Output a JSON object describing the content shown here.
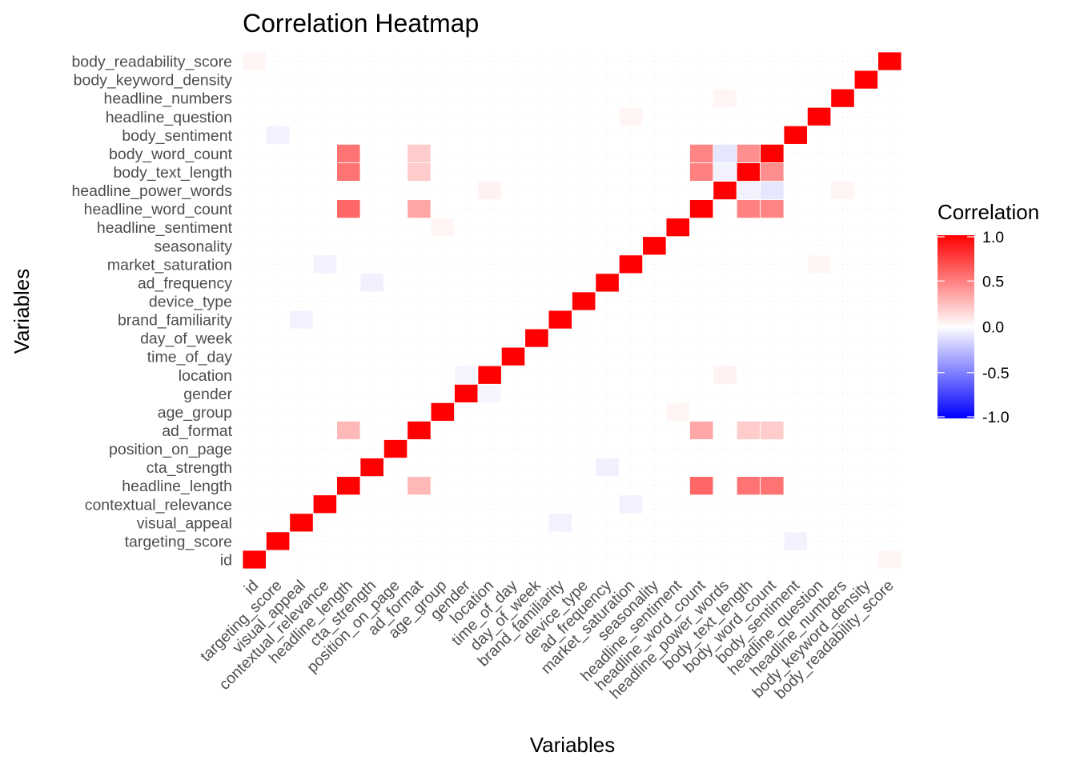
{
  "chart_data": {
    "type": "heatmap",
    "title": "Correlation Heatmap",
    "xlabel": "Variables",
    "ylabel": "Variables",
    "variables": [
      "id",
      "targeting_score",
      "visual_appeal",
      "contextual_relevance",
      "headline_length",
      "cta_strength",
      "position_on_page",
      "ad_format",
      "age_group",
      "gender",
      "location",
      "time_of_day",
      "day_of_week",
      "brand_familiarity",
      "device_type",
      "ad_frequency",
      "market_saturation",
      "seasonality",
      "headline_sentiment",
      "headline_word_count",
      "headline_power_words",
      "body_text_length",
      "body_word_count",
      "body_sentiment",
      "headline_question",
      "headline_numbers",
      "body_keyword_density",
      "body_readability_score"
    ],
    "correlations": [
      {
        "a": "headline_length",
        "b": "ad_format",
        "value": 0.28
      },
      {
        "a": "headline_length",
        "b": "headline_word_count",
        "value": 0.6
      },
      {
        "a": "headline_length",
        "b": "body_text_length",
        "value": 0.55
      },
      {
        "a": "headline_length",
        "b": "body_word_count",
        "value": 0.55
      },
      {
        "a": "ad_format",
        "b": "headline_word_count",
        "value": 0.35
      },
      {
        "a": "ad_format",
        "b": "body_text_length",
        "value": 0.2
      },
      {
        "a": "ad_format",
        "b": "body_word_count",
        "value": 0.2
      },
      {
        "a": "headline_word_count",
        "b": "body_text_length",
        "value": 0.5
      },
      {
        "a": "headline_word_count",
        "b": "body_word_count",
        "value": 0.48
      },
      {
        "a": "body_text_length",
        "b": "body_word_count",
        "value": 0.44
      },
      {
        "a": "headline_power_words",
        "b": "body_word_count",
        "value": -0.1
      },
      {
        "a": "headline_power_words",
        "b": "body_text_length",
        "value": -0.05
      },
      {
        "a": "cta_strength",
        "b": "ad_frequency",
        "value": -0.06
      },
      {
        "a": "contextual_relevance",
        "b": "market_saturation",
        "value": -0.05
      },
      {
        "a": "gender",
        "b": "location",
        "value": -0.04
      },
      {
        "a": "location",
        "b": "headline_power_words",
        "value": 0.05
      },
      {
        "a": "targeting_score",
        "b": "body_sentiment",
        "value": -0.05
      },
      {
        "a": "market_saturation",
        "b": "headline_question",
        "value": 0.04
      },
      {
        "a": "visual_appeal",
        "b": "brand_familiarity",
        "value": -0.05
      },
      {
        "a": "headline_numbers",
        "b": "headline_power_words",
        "value": 0.04
      },
      {
        "a": "body_readability_score",
        "b": "id",
        "value": 0.04
      },
      {
        "a": "age_group",
        "b": "headline_sentiment",
        "value": 0.04
      }
    ],
    "diagonal": 1.0,
    "legend": {
      "title": "Correlation",
      "placement": "right",
      "ticks": [
        "1.0",
        "0.5",
        "0.0",
        "-0.5",
        "-1.0"
      ],
      "tick_values": [
        1.0,
        0.5,
        0.0,
        -0.5,
        -1.0
      ],
      "range": [
        -1,
        1
      ],
      "colors": {
        "low": "#0000ff",
        "mid": "#ffffff",
        "high": "#ff0000"
      }
    },
    "grid": true
  }
}
